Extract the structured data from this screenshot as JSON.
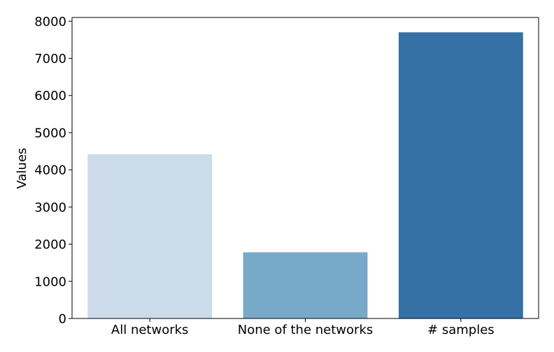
{
  "chart_data": {
    "type": "bar",
    "categories": [
      "All networks",
      "None of the networks",
      "# samples"
    ],
    "values": [
      4420,
      1780,
      7700
    ],
    "colors": [
      "#cbdbea",
      "#78a9c8",
      "#3571a5"
    ],
    "title": "",
    "xlabel": "",
    "ylabel": "Values",
    "ylim": [
      0,
      8100
    ],
    "yticks": [
      0,
      1000,
      2000,
      3000,
      4000,
      5000,
      6000,
      7000,
      8000
    ],
    "ytick_labels": [
      "0",
      "1000",
      "2000",
      "3000",
      "4000",
      "5000",
      "6000",
      "7000",
      "8000"
    ],
    "grid": false,
    "legend": "none"
  }
}
